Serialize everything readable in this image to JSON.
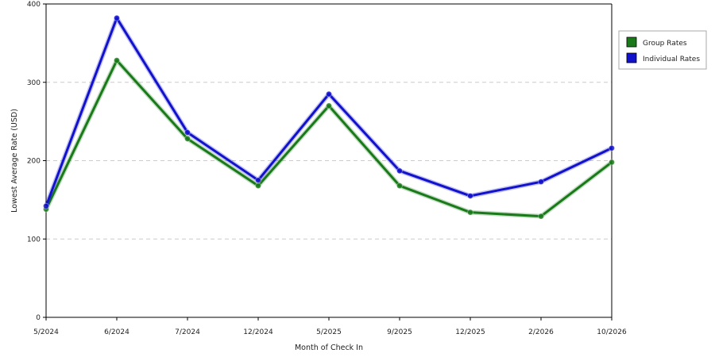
{
  "chart_data": {
    "type": "line",
    "title": "",
    "xlabel": "Month of Check In",
    "ylabel": "Lowest Average Rate (USD)",
    "categories": [
      "5/2024",
      "6/2024",
      "7/2024",
      "12/2024",
      "5/2025",
      "9/2025",
      "12/2025",
      "2/2026",
      "10/2026"
    ],
    "ylim": [
      0,
      400
    ],
    "yticks": [
      "0",
      "100",
      "200",
      "300",
      "400"
    ],
    "grid": true,
    "legend_position": "right",
    "series": [
      {
        "name": "Group Rates",
        "color": "#1a7a1a",
        "values": [
          138,
          328,
          228,
          168,
          270,
          168,
          134,
          129,
          198
        ]
      },
      {
        "name": "Individual Rates",
        "color": "#1212cc",
        "values": [
          142,
          382,
          236,
          175,
          285,
          187,
          155,
          173,
          216
        ]
      }
    ]
  }
}
